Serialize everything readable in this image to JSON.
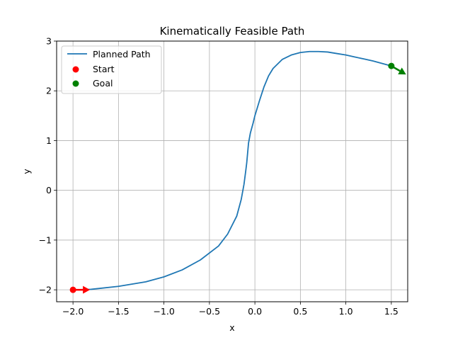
{
  "chart_data": {
    "type": "line",
    "title": "Kinematically Feasible Path",
    "xlabel": "x",
    "ylabel": "y",
    "xlim": [
      -2.18,
      1.68
    ],
    "ylim": [
      -2.24,
      3.0
    ],
    "x_ticks": [
      -2.0,
      -1.5,
      -1.0,
      -0.5,
      0.0,
      0.5,
      1.0,
      1.5
    ],
    "x_tick_labels": [
      "−2.0",
      "−1.5",
      "−1.0",
      "−0.5",
      "0.0",
      "0.5",
      "1.0",
      "1.5"
    ],
    "y_ticks": [
      -2,
      -1,
      0,
      1,
      2,
      3
    ],
    "y_tick_labels": [
      "−2",
      "−1",
      "0",
      "1",
      "2",
      "3"
    ],
    "grid": true,
    "legend_placement": "upper-left",
    "series": [
      {
        "name": "Planned Path",
        "color": "#1f77b4",
        "x": [
          -2.0,
          -1.8,
          -1.5,
          -1.2,
          -1.0,
          -0.8,
          -0.6,
          -0.4,
          -0.3,
          -0.2,
          -0.15,
          -0.12,
          -0.1,
          -0.09,
          -0.08,
          -0.07,
          -0.05,
          -0.02,
          0.0,
          0.05,
          0.1,
          0.15,
          0.2,
          0.3,
          0.4,
          0.5,
          0.6,
          0.7,
          0.8,
          0.9,
          1.0,
          1.1,
          1.2,
          1.3,
          1.4,
          1.5
        ],
        "y": [
          -2.0,
          -1.99,
          -1.93,
          -1.84,
          -1.74,
          -1.6,
          -1.4,
          -1.12,
          -0.88,
          -0.52,
          -0.18,
          0.12,
          0.4,
          0.55,
          0.75,
          0.95,
          1.15,
          1.35,
          1.5,
          1.8,
          2.08,
          2.3,
          2.45,
          2.63,
          2.72,
          2.77,
          2.79,
          2.79,
          2.78,
          2.75,
          2.72,
          2.68,
          2.64,
          2.6,
          2.55,
          2.5
        ]
      }
    ],
    "markers": [
      {
        "name": "Start",
        "color": "#ff0000",
        "x": -2.0,
        "y": -2.0,
        "heading_deg": 0
      },
      {
        "name": "Goal",
        "color": "#008000",
        "x": 1.5,
        "y": 2.5,
        "heading_deg": -30
      }
    ]
  }
}
